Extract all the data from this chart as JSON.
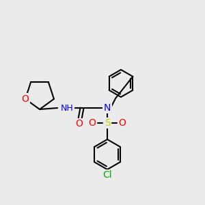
{
  "bg_color": "#ebebeb",
  "bond_color": "#000000",
  "bond_lw": 1.5,
  "atom_colors": {
    "O": "#ff0000",
    "N": "#0000ff",
    "H": "#7a7a7a",
    "S": "#cccc00",
    "Cl": "#00aa00"
  },
  "font_size": 9,
  "font_size_small": 8
}
